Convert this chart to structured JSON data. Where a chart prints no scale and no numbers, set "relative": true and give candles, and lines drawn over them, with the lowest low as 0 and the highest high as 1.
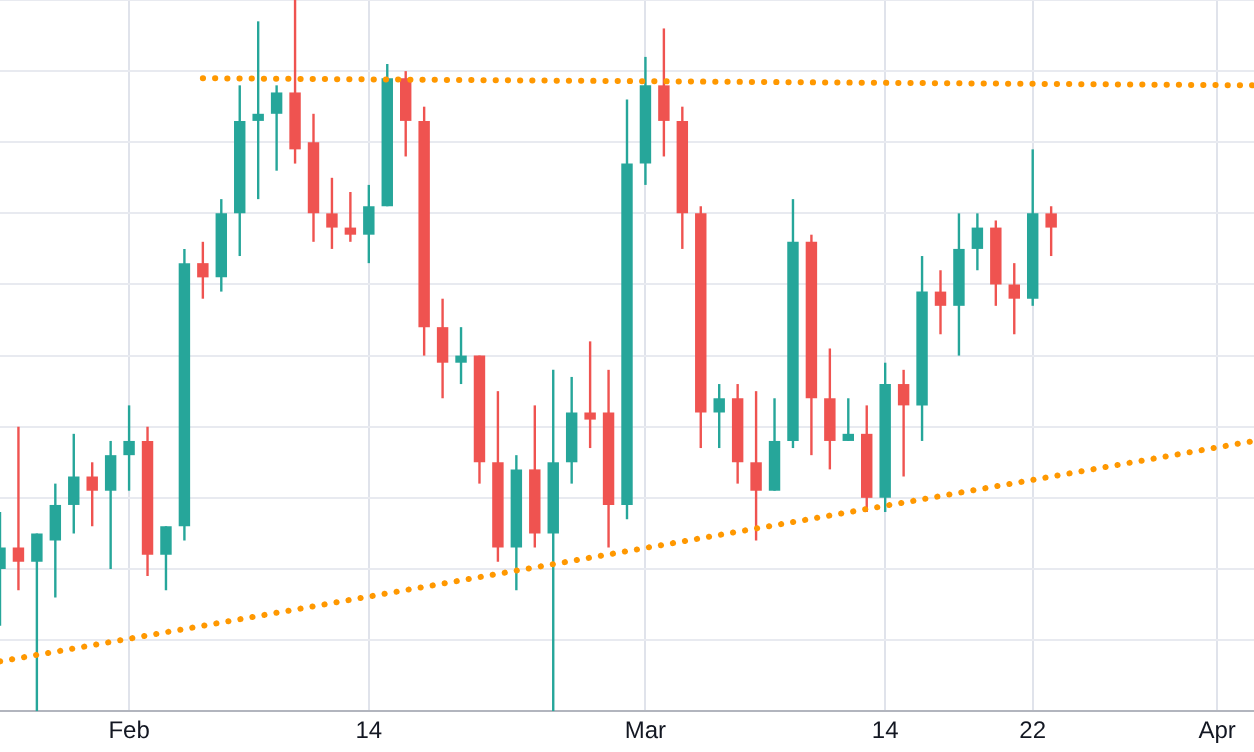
{
  "chart_data": {
    "type": "candlestick",
    "relative": true,
    "grid": true,
    "legend": false,
    "xlim": [
      "--01-25",
      "--04-03"
    ],
    "xticks": [
      {
        "value": "--02-01",
        "label": "Feb"
      },
      {
        "value": "--02-14",
        "label": "14"
      },
      {
        "value": "--03-01",
        "label": "Mar"
      },
      {
        "value": "--03-14",
        "label": "14"
      },
      {
        "value": "--03-22",
        "label": "22"
      },
      {
        "value": "--04-01",
        "label": "Apr"
      }
    ],
    "x": [
      "--01-25",
      "--01-26",
      "--01-27",
      "--01-28",
      "--01-29",
      "--01-30",
      "--01-31",
      "--02-01",
      "--02-02",
      "--02-03",
      "--02-04",
      "--02-05",
      "--02-06",
      "--02-07",
      "--02-08",
      "--02-09",
      "--02-10",
      "--02-11",
      "--02-12",
      "--02-13",
      "--02-14",
      "--02-15",
      "--02-16",
      "--02-17",
      "--02-18",
      "--02-19",
      "--02-20",
      "--02-21",
      "--02-22",
      "--02-23",
      "--02-24",
      "--02-25",
      "--02-26",
      "--02-27",
      "--02-28",
      "--03-01",
      "--03-02",
      "--03-03",
      "--03-04",
      "--03-05",
      "--03-06",
      "--03-07",
      "--03-08",
      "--03-09",
      "--03-10",
      "--03-11",
      "--03-12",
      "--03-13",
      "--03-14",
      "--03-15",
      "--03-16",
      "--03-17",
      "--03-18",
      "--03-19",
      "--03-20",
      "--03-21",
      "--03-22",
      "--03-23"
    ],
    "ohlc": [
      [
        0.2,
        0.28,
        0.12,
        0.23
      ],
      [
        0.23,
        0.4,
        0.17,
        0.21
      ],
      [
        0.21,
        0.25,
        0.0,
        0.25
      ],
      [
        0.24,
        0.32,
        0.16,
        0.29
      ],
      [
        0.29,
        0.39,
        0.25,
        0.33
      ],
      [
        0.33,
        0.35,
        0.26,
        0.31
      ],
      [
        0.31,
        0.38,
        0.2,
        0.36
      ],
      [
        0.36,
        0.43,
        0.31,
        0.38
      ],
      [
        0.38,
        0.4,
        0.19,
        0.22
      ],
      [
        0.22,
        0.26,
        0.17,
        0.26
      ],
      [
        0.26,
        0.65,
        0.24,
        0.63
      ],
      [
        0.63,
        0.66,
        0.58,
        0.61
      ],
      [
        0.61,
        0.72,
        0.59,
        0.7
      ],
      [
        0.7,
        0.88,
        0.64,
        0.83
      ],
      [
        0.83,
        0.97,
        0.72,
        0.84
      ],
      [
        0.84,
        0.88,
        0.76,
        0.87
      ],
      [
        0.87,
        1,
        0.77,
        0.79
      ],
      [
        0.8,
        0.84,
        0.66,
        0.7
      ],
      [
        0.7,
        0.75,
        0.65,
        0.68
      ],
      [
        0.68,
        0.73,
        0.66,
        0.67
      ],
      [
        0.67,
        0.74,
        0.63,
        0.71
      ],
      [
        0.71,
        0.91,
        0.71,
        0.89
      ],
      [
        0.89,
        0.9,
        0.78,
        0.83
      ],
      [
        0.83,
        0.85,
        0.5,
        0.54
      ],
      [
        0.54,
        0.58,
        0.44,
        0.49
      ],
      [
        0.49,
        0.54,
        0.46,
        0.5
      ],
      [
        0.5,
        0.5,
        0.32,
        0.35
      ],
      [
        0.35,
        0.45,
        0.21,
        0.23
      ],
      [
        0.23,
        0.36,
        0.17,
        0.34
      ],
      [
        0.34,
        0.43,
        0.23,
        0.25
      ],
      [
        0.25,
        0.48,
        0,
        0.35
      ],
      [
        0.35,
        0.47,
        0.32,
        0.42
      ],
      [
        0.42,
        0.52,
        0.37,
        0.41
      ],
      [
        0.42,
        0.48,
        0.23,
        0.29
      ],
      [
        0.29,
        0.86,
        0.27,
        0.77
      ],
      [
        0.77,
        0.92,
        0.74,
        0.88
      ],
      [
        0.88,
        0.96,
        0.78,
        0.83
      ],
      [
        0.83,
        0.85,
        0.65,
        0.7
      ],
      [
        0.7,
        0.71,
        0.37,
        0.42
      ],
      [
        0.42,
        0.46,
        0.37,
        0.44
      ],
      [
        0.44,
        0.46,
        0.32,
        0.35
      ],
      [
        0.35,
        0.45,
        0.24,
        0.31
      ],
      [
        0.31,
        0.44,
        0.31,
        0.38
      ],
      [
        0.38,
        0.72,
        0.37,
        0.66
      ],
      [
        0.66,
        0.67,
        0.36,
        0.44
      ],
      [
        0.44,
        0.51,
        0.34,
        0.38
      ],
      [
        0.38,
        0.44,
        0.38,
        0.39
      ],
      [
        0.39,
        0.43,
        0.28,
        0.3
      ],
      [
        0.3,
        0.49,
        0.28,
        0.46
      ],
      [
        0.46,
        0.48,
        0.33,
        0.43
      ],
      [
        0.43,
        0.64,
        0.38,
        0.59
      ],
      [
        0.59,
        0.62,
        0.53,
        0.57
      ],
      [
        0.57,
        0.7,
        0.5,
        0.65
      ],
      [
        0.65,
        0.7,
        0.62,
        0.68
      ],
      [
        0.68,
        0.69,
        0.57,
        0.6
      ],
      [
        0.6,
        0.63,
        0.53,
        0.58
      ],
      [
        0.58,
        0.79,
        0.57,
        0.7
      ],
      [
        0.7,
        0.71,
        0.64,
        0.68
      ]
    ],
    "colors": [
      "#26a69a",
      "#ef5350",
      "#26a69a",
      "#26a69a",
      "#26a69a",
      "#ef5350",
      "#26a69a",
      "#26a69a",
      "#ef5350",
      "#26a69a",
      "#26a69a",
      "#ef5350",
      "#26a69a",
      "#26a69a",
      "#26a69a",
      "#26a69a",
      "#ef5350",
      "#ef5350",
      "#ef5350",
      "#ef5350",
      "#26a69a",
      "#26a69a",
      "#ef5350",
      "#ef5350",
      "#ef5350",
      "#26a69a",
      "#ef5350",
      "#ef5350",
      "#26a69a",
      "#ef5350",
      "#26a69a",
      "#26a69a",
      "#ef5350",
      "#ef5350",
      "#26a69a",
      "#26a69a",
      "#ef5350",
      "#ef5350",
      "#ef5350",
      "#26a69a",
      "#ef5350",
      "#ef5350",
      "#26a69a",
      "#26a69a",
      "#ef5350",
      "#ef5350",
      "#26a69a",
      "#ef5350",
      "#26a69a",
      "#ef5350",
      "#26a69a",
      "#ef5350",
      "#26a69a",
      "#26a69a",
      "#ef5350",
      "#ef5350",
      "#26a69a",
      "#ef5350"
    ],
    "series": [
      {
        "type": "line",
        "color": "#ff9800",
        "line_style": "dotted",
        "marker": "none",
        "x": [
          "--02-05",
          "--04-03"
        ],
        "values": [
          0.89,
          0.88
        ]
      },
      {
        "type": "line",
        "color": "#ff9800",
        "line_style": "dotted",
        "marker": "none",
        "x": [
          "--01-25",
          "--04-03"
        ],
        "values": [
          0.07,
          0.38
        ]
      }
    ]
  }
}
